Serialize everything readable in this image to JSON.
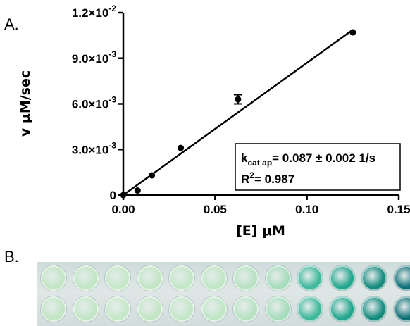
{
  "panel_a_label": "A.",
  "panel_b_label": "B.",
  "chart_data": {
    "type": "scatter",
    "title": "",
    "xlabel": "[E] μM",
    "ylabel": "v μM/sec",
    "xlim": [
      0,
      0.15
    ],
    "ylim": [
      0,
      0.012
    ],
    "x_ticks": [
      0.0,
      0.05,
      0.1,
      0.15
    ],
    "x_tick_labels": [
      "0.00",
      "0.05",
      "0.10",
      "0.15"
    ],
    "y_ticks": [
      0,
      0.003,
      0.006,
      0.009,
      0.012
    ],
    "y_tick_labels": [
      {
        "base": "0",
        "exp": ""
      },
      {
        "base": "3.0×10",
        "exp": "-3"
      },
      {
        "base": "6.0×10",
        "exp": "-3"
      },
      {
        "base": "9.0×10",
        "exp": "-3"
      },
      {
        "base": "1.2×10",
        "exp": "-2"
      }
    ],
    "series": [
      {
        "x": [
          0.0,
          0.0078,
          0.0156,
          0.0313,
          0.0625,
          0.125
        ],
        "y": [
          0.0,
          0.0003,
          0.0013,
          0.0031,
          0.0063,
          0.0107
        ],
        "yerr": [
          0,
          0,
          0,
          0,
          0.0003,
          0
        ]
      }
    ],
    "fit_line": {
      "slope": 0.087,
      "intercept": 0.0,
      "x_range": [
        0,
        0.125
      ]
    },
    "annotation": {
      "kcat_symbol": "k",
      "kcat_sub": "cat ap",
      "kcat_value": "= 0.087 ±  0.002 1/s",
      "r2_symbol": "R",
      "r2_sup": "2",
      "r2_value": "= 0.987"
    },
    "grid": false,
    "legend": "none"
  },
  "plate": {
    "columns": 12,
    "well_colors": [
      "#c2e5c4",
      "#c2e6c6",
      "#c6e8c8",
      "#c4e6c6",
      "#c3e7c7",
      "#bfe6c5",
      "#b8e2c3",
      "#a6dcbc",
      "#3fb99b",
      "#24a68e",
      "#158b7e",
      "#0d6f76"
    ]
  }
}
